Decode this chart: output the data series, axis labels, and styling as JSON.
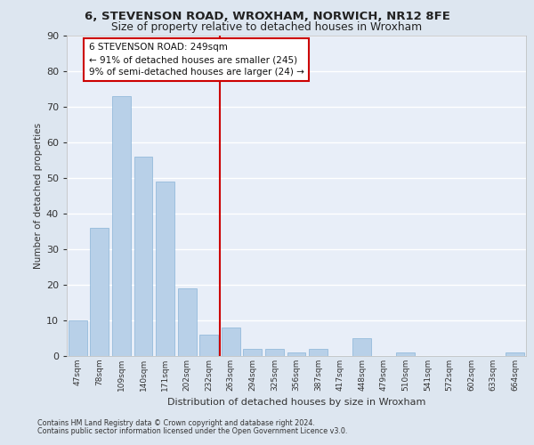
{
  "title_line1": "6, STEVENSON ROAD, WROXHAM, NORWICH, NR12 8FE",
  "title_line2": "Size of property relative to detached houses in Wroxham",
  "xlabel": "Distribution of detached houses by size in Wroxham",
  "ylabel": "Number of detached properties",
  "categories": [
    "47sqm",
    "78sqm",
    "109sqm",
    "140sqm",
    "171sqm",
    "202sqm",
    "232sqm",
    "263sqm",
    "294sqm",
    "325sqm",
    "356sqm",
    "387sqm",
    "417sqm",
    "448sqm",
    "479sqm",
    "510sqm",
    "541sqm",
    "572sqm",
    "602sqm",
    "633sqm",
    "664sqm"
  ],
  "values": [
    10,
    36,
    73,
    56,
    49,
    19,
    6,
    8,
    2,
    2,
    1,
    2,
    0,
    5,
    0,
    1,
    0,
    0,
    0,
    0,
    1
  ],
  "bar_color": "#b8d0e8",
  "bar_edge_color": "#8ab4d8",
  "vline_color": "#cc0000",
  "annotation_text": "6 STEVENSON ROAD: 249sqm\n← 91% of detached houses are smaller (245)\n9% of semi-detached houses are larger (24) →",
  "annotation_box_facecolor": "#ffffff",
  "annotation_box_edgecolor": "#cc0000",
  "background_color": "#dde6f0",
  "plot_bg_color": "#e8eef8",
  "grid_color": "#ffffff",
  "ylim": [
    0,
    90
  ],
  "yticks": [
    0,
    10,
    20,
    30,
    40,
    50,
    60,
    70,
    80,
    90
  ],
  "footer_line1": "Contains HM Land Registry data © Crown copyright and database right 2024.",
  "footer_line2": "Contains public sector information licensed under the Open Government Licence v3.0."
}
